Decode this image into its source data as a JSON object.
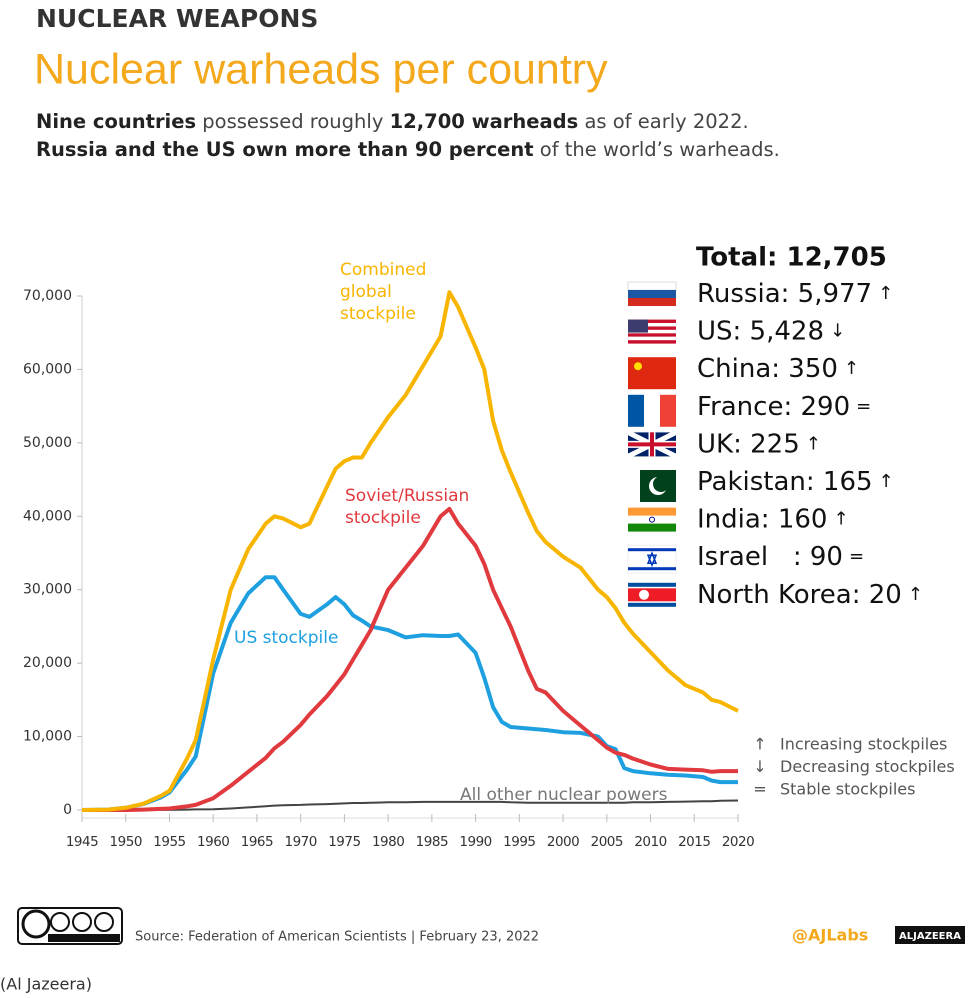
{
  "chart_data": {
    "type": "line",
    "kicker": "NUCLEAR WEAPONS",
    "title": "Nuclear warheads per country",
    "subtitle": [
      [
        {
          "text": "Nine countries",
          "bold": true
        },
        {
          "text": " possessed roughly "
        },
        {
          "text": "12,700 warheads",
          "bold": true
        },
        {
          "text": " as of early 2022."
        }
      ],
      [
        {
          "text": "Russia and the US own more than 90 percent",
          "bold": true
        },
        {
          "text": " of the world’s warheads."
        }
      ]
    ],
    "x": [
      1945,
      1948,
      1950,
      1952,
      1954,
      1955,
      1957,
      1958,
      1960,
      1962,
      1964,
      1966,
      1967,
      1968,
      1970,
      1971,
      1973,
      1974,
      1975,
      1976,
      1977,
      1978,
      1980,
      1982,
      1984,
      1986,
      1987,
      1988,
      1990,
      1991,
      1992,
      1993,
      1994,
      1996,
      1997,
      1998,
      2000,
      2002,
      2004,
      2005,
      2006,
      2007,
      2008,
      2010,
      2012,
      2014,
      2016,
      2017,
      2018,
      2020
    ],
    "series": [
      {
        "name": "Combined global stockpile",
        "color": "#f7b500",
        "values": [
          0,
          50,
          300,
          850,
          1900,
          2600,
          7000,
          9500,
          20500,
          30000,
          35500,
          39000,
          40000,
          39700,
          38500,
          39000,
          44000,
          46500,
          47500,
          48000,
          48000,
          50000,
          53500,
          56500,
          60500,
          64500,
          70500,
          68500,
          63000,
          60000,
          53000,
          49000,
          46000,
          40500,
          38000,
          36500,
          34500,
          33000,
          30000,
          29000,
          27500,
          25500,
          24000,
          21500,
          19000,
          17000,
          16000,
          15000,
          14700,
          13500
        ]
      },
      {
        "name": "Soviet/Russian stockpile",
        "color": "#e0393e",
        "values": [
          0,
          0,
          0,
          50,
          150,
          200,
          500,
          700,
          1600,
          3300,
          5200,
          7100,
          8400,
          9300,
          11600,
          13000,
          15500,
          17000,
          18500,
          20500,
          22500,
          24500,
          30000,
          33000,
          36000,
          40000,
          41000,
          39000,
          36000,
          33500,
          30000,
          27500,
          25000,
          19000,
          16500,
          16000,
          13500,
          11500,
          9500,
          8500,
          7800,
          7500,
          7000,
          6200,
          5600,
          5500,
          5400,
          5200,
          5300,
          5300
        ]
      },
      {
        "name": "US stockpile",
        "color": "#1ea0e0",
        "values": [
          0,
          50,
          300,
          800,
          1700,
          2400,
          5500,
          7300,
          18600,
          25500,
          29500,
          31700,
          31700,
          30000,
          26700,
          26300,
          28000,
          29000,
          28000,
          26500,
          25800,
          25000,
          24500,
          23500,
          23800,
          23700,
          23700,
          23900,
          21400,
          18000,
          14000,
          12000,
          11300,
          11100,
          11000,
          10900,
          10600,
          10500,
          10000,
          8700,
          8300,
          5700,
          5300,
          5000,
          4800,
          4700,
          4500,
          4000,
          3800,
          3800
        ]
      },
      {
        "name": "All other nuclear powers",
        "color": "#444444",
        "values": [
          0,
          0,
          0,
          0,
          10,
          20,
          50,
          80,
          100,
          200,
          350,
          500,
          600,
          650,
          700,
          750,
          800,
          850,
          900,
          950,
          950,
          1000,
          1050,
          1050,
          1100,
          1100,
          1100,
          1100,
          1100,
          1100,
          1100,
          1100,
          1050,
          1000,
          1000,
          1000,
          1000,
          1000,
          1000,
          1000,
          1000,
          1000,
          1050,
          1050,
          1100,
          1150,
          1200,
          1200,
          1250,
          1300
        ]
      }
    ],
    "annotations": [
      [
        "Combined",
        "global",
        "stockpile"
      ],
      [
        "Soviet/Russian",
        "stockpile"
      ],
      [
        "US stockpile"
      ],
      [
        "All other nuclear powers"
      ]
    ],
    "xlim": [
      1945,
      2020
    ],
    "xticks": [
      1945,
      1950,
      1955,
      1960,
      1965,
      1970,
      1975,
      1980,
      1985,
      1990,
      1995,
      2000,
      2005,
      2010,
      2015,
      2020
    ],
    "ylim": [
      0,
      70000
    ],
    "yticks": [
      0,
      {
        "value": 10000,
        "label": "10,000"
      },
      {
        "value": 20000,
        "label": "20,000"
      },
      {
        "value": 30000,
        "label": "30,000"
      },
      {
        "value": 40000,
        "label": "40,000"
      },
      {
        "value": 50000,
        "label": "50,000"
      },
      {
        "value": 60000,
        "label": "60,000"
      },
      {
        "value": 70000,
        "label": "70,000"
      }
    ],
    "total": "Total: 12,705",
    "countries": [
      {
        "label": "Russia: 5,977",
        "trend": "↑"
      },
      {
        "label": "US: 5,428",
        "trend": "↓"
      },
      {
        "label": "China: 350",
        "trend": "↑"
      },
      {
        "label": "France: 290",
        "trend": "="
      },
      {
        "label": "UK: 225",
        "trend": "↑"
      },
      {
        "label": "Pakistan: 165",
        "trend": "↑"
      },
      {
        "label": "India: 160",
        "trend": "↑"
      },
      {
        "label": "Israel   : 90",
        "trend": "="
      },
      {
        "label": "North Korea: 20",
        "trend": "↑"
      }
    ],
    "key": [
      {
        "symbol": "↑",
        "text": "Increasing stockpiles"
      },
      {
        "symbol": "↓",
        "text": "Decreasing stockpiles"
      },
      {
        "symbol": "=",
        "text": "Stable stockpiles"
      }
    ],
    "source": "Source: Federation of American Scientists | February 23, 2022",
    "handle": "@AJLabs",
    "logo": "ALJAZEERA",
    "caption": "(Al Jazeera)"
  }
}
